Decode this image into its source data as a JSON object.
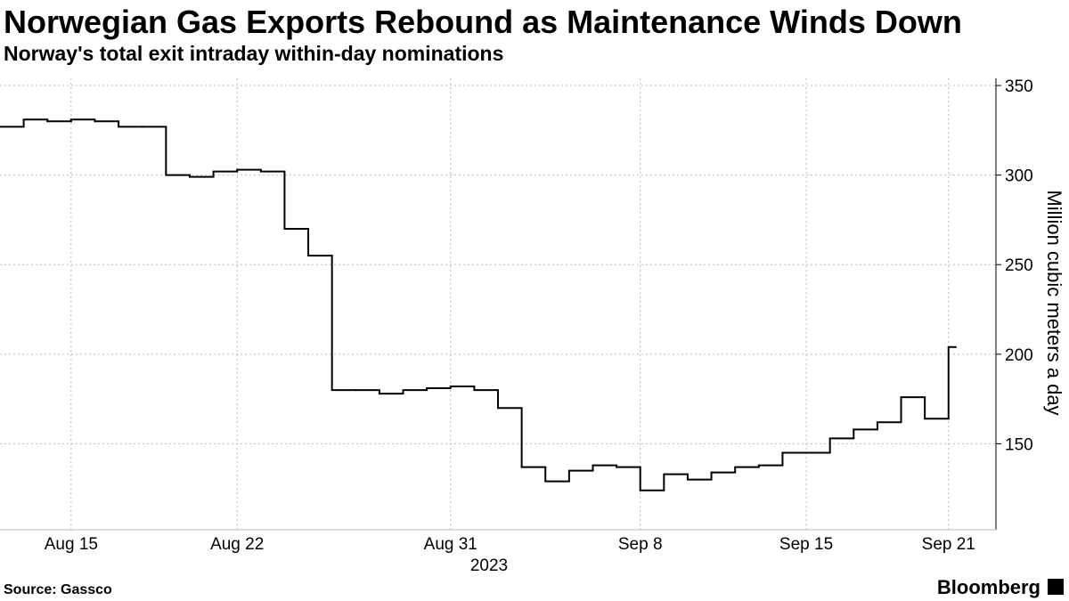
{
  "chart_data": {
    "type": "line",
    "title": "Norwegian Gas Exports Rebound as Maintenance Winds Down",
    "subtitle": "Norway's total exit intraday within-day nominations",
    "ylabel": "Million cubic meters a day",
    "xlabel": "2023",
    "source": "Source: Gassco",
    "brand": "Bloomberg",
    "x": [
      "2023-08-12",
      "2023-08-13",
      "2023-08-14",
      "2023-08-15",
      "2023-08-16",
      "2023-08-17",
      "2023-08-18",
      "2023-08-19",
      "2023-08-20",
      "2023-08-21",
      "2023-08-22",
      "2023-08-23",
      "2023-08-24",
      "2023-08-25",
      "2023-08-26",
      "2023-08-27",
      "2023-08-28",
      "2023-08-29",
      "2023-08-30",
      "2023-08-31",
      "2023-09-01",
      "2023-09-02",
      "2023-09-03",
      "2023-09-04",
      "2023-09-05",
      "2023-09-06",
      "2023-09-07",
      "2023-09-08",
      "2023-09-09",
      "2023-09-10",
      "2023-09-11",
      "2023-09-12",
      "2023-09-13",
      "2023-09-14",
      "2023-09-15",
      "2023-09-16",
      "2023-09-17",
      "2023-09-18",
      "2023-09-19",
      "2023-09-20",
      "2023-09-21"
    ],
    "series": [
      {
        "name": "Nominations",
        "color": "#000000",
        "values": [
          327,
          331,
          330,
          331,
          330,
          327,
          327,
          300,
          299,
          302,
          303,
          302,
          270,
          255,
          180,
          180,
          178,
          180,
          181,
          182,
          180,
          170,
          137,
          129,
          135,
          138,
          137,
          124,
          133,
          130,
          134,
          137,
          138,
          145,
          145,
          153,
          158,
          162,
          176,
          164,
          204
        ]
      }
    ],
    "xlim": [
      "2023-08-12",
      "2023-09-23"
    ],
    "xticks": [
      {
        "value": "2023-08-15",
        "label": "Aug 15"
      },
      {
        "value": "2023-08-22",
        "label": "Aug 22"
      },
      {
        "value": "2023-08-31",
        "label": "Aug 31"
      },
      {
        "value": "2023-09-08",
        "label": "Sep 8"
      },
      {
        "value": "2023-09-15",
        "label": "Sep 15"
      },
      {
        "value": "2023-09-21",
        "label": "Sep 21"
      }
    ],
    "ylim": [
      102,
      354
    ],
    "yticks": [
      150,
      200,
      250,
      300,
      350
    ],
    "grid": true
  }
}
